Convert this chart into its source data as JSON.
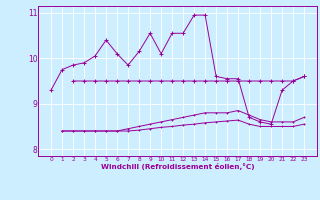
{
  "xlabel": "Windchill (Refroidissement éolien,°C)",
  "background_color": "#cceeff",
  "line_color": "#990099",
  "x_ticks": [
    0,
    1,
    2,
    3,
    4,
    5,
    6,
    7,
    8,
    9,
    10,
    11,
    12,
    13,
    14,
    15,
    16,
    17,
    18,
    19,
    20,
    21,
    22,
    23
  ],
  "ylim": [
    7.85,
    11.15
  ],
  "yticks": [
    8,
    9,
    10,
    11
  ],
  "series1_x": [
    0,
    1,
    2,
    3,
    4,
    5,
    6,
    7,
    8,
    9,
    10,
    11,
    12,
    13,
    14,
    15,
    16,
    17,
    18,
    19,
    20,
    21,
    22,
    23
  ],
  "series1_y": [
    9.3,
    9.75,
    9.85,
    9.9,
    10.05,
    10.4,
    10.1,
    9.85,
    10.15,
    10.55,
    10.1,
    10.55,
    10.55,
    10.95,
    10.95,
    9.6,
    9.55,
    9.55,
    8.7,
    8.6,
    8.55,
    9.3,
    9.5,
    9.6
  ],
  "series2_x": [
    2,
    3,
    4,
    5,
    6,
    7,
    8,
    9,
    10,
    11,
    12,
    13,
    14,
    15,
    16,
    17,
    18,
    19,
    20,
    21,
    22,
    23
  ],
  "series2_y": [
    9.5,
    9.5,
    9.5,
    9.5,
    9.5,
    9.5,
    9.5,
    9.5,
    9.5,
    9.5,
    9.5,
    9.5,
    9.5,
    9.5,
    9.5,
    9.5,
    9.5,
    9.5,
    9.5,
    9.5,
    9.5,
    9.6
  ],
  "series3_x": [
    1,
    2,
    3,
    4,
    5,
    6,
    7,
    8,
    9,
    10,
    11,
    12,
    13,
    14,
    15,
    16,
    17,
    18,
    19,
    20,
    21,
    22,
    23
  ],
  "series3_y": [
    8.4,
    8.4,
    8.4,
    8.4,
    8.4,
    8.4,
    8.45,
    8.5,
    8.55,
    8.6,
    8.65,
    8.7,
    8.75,
    8.8,
    8.8,
    8.8,
    8.85,
    8.75,
    8.65,
    8.6,
    8.6,
    8.6,
    8.7
  ],
  "series4_x": [
    1,
    2,
    3,
    4,
    5,
    6,
    7,
    8,
    9,
    10,
    11,
    12,
    13,
    14,
    15,
    16,
    17,
    18,
    19,
    20,
    21,
    22,
    23
  ],
  "series4_y": [
    8.4,
    8.4,
    8.4,
    8.4,
    8.4,
    8.4,
    8.4,
    8.42,
    8.45,
    8.48,
    8.5,
    8.53,
    8.55,
    8.58,
    8.6,
    8.62,
    8.64,
    8.55,
    8.5,
    8.5,
    8.5,
    8.5,
    8.55
  ]
}
